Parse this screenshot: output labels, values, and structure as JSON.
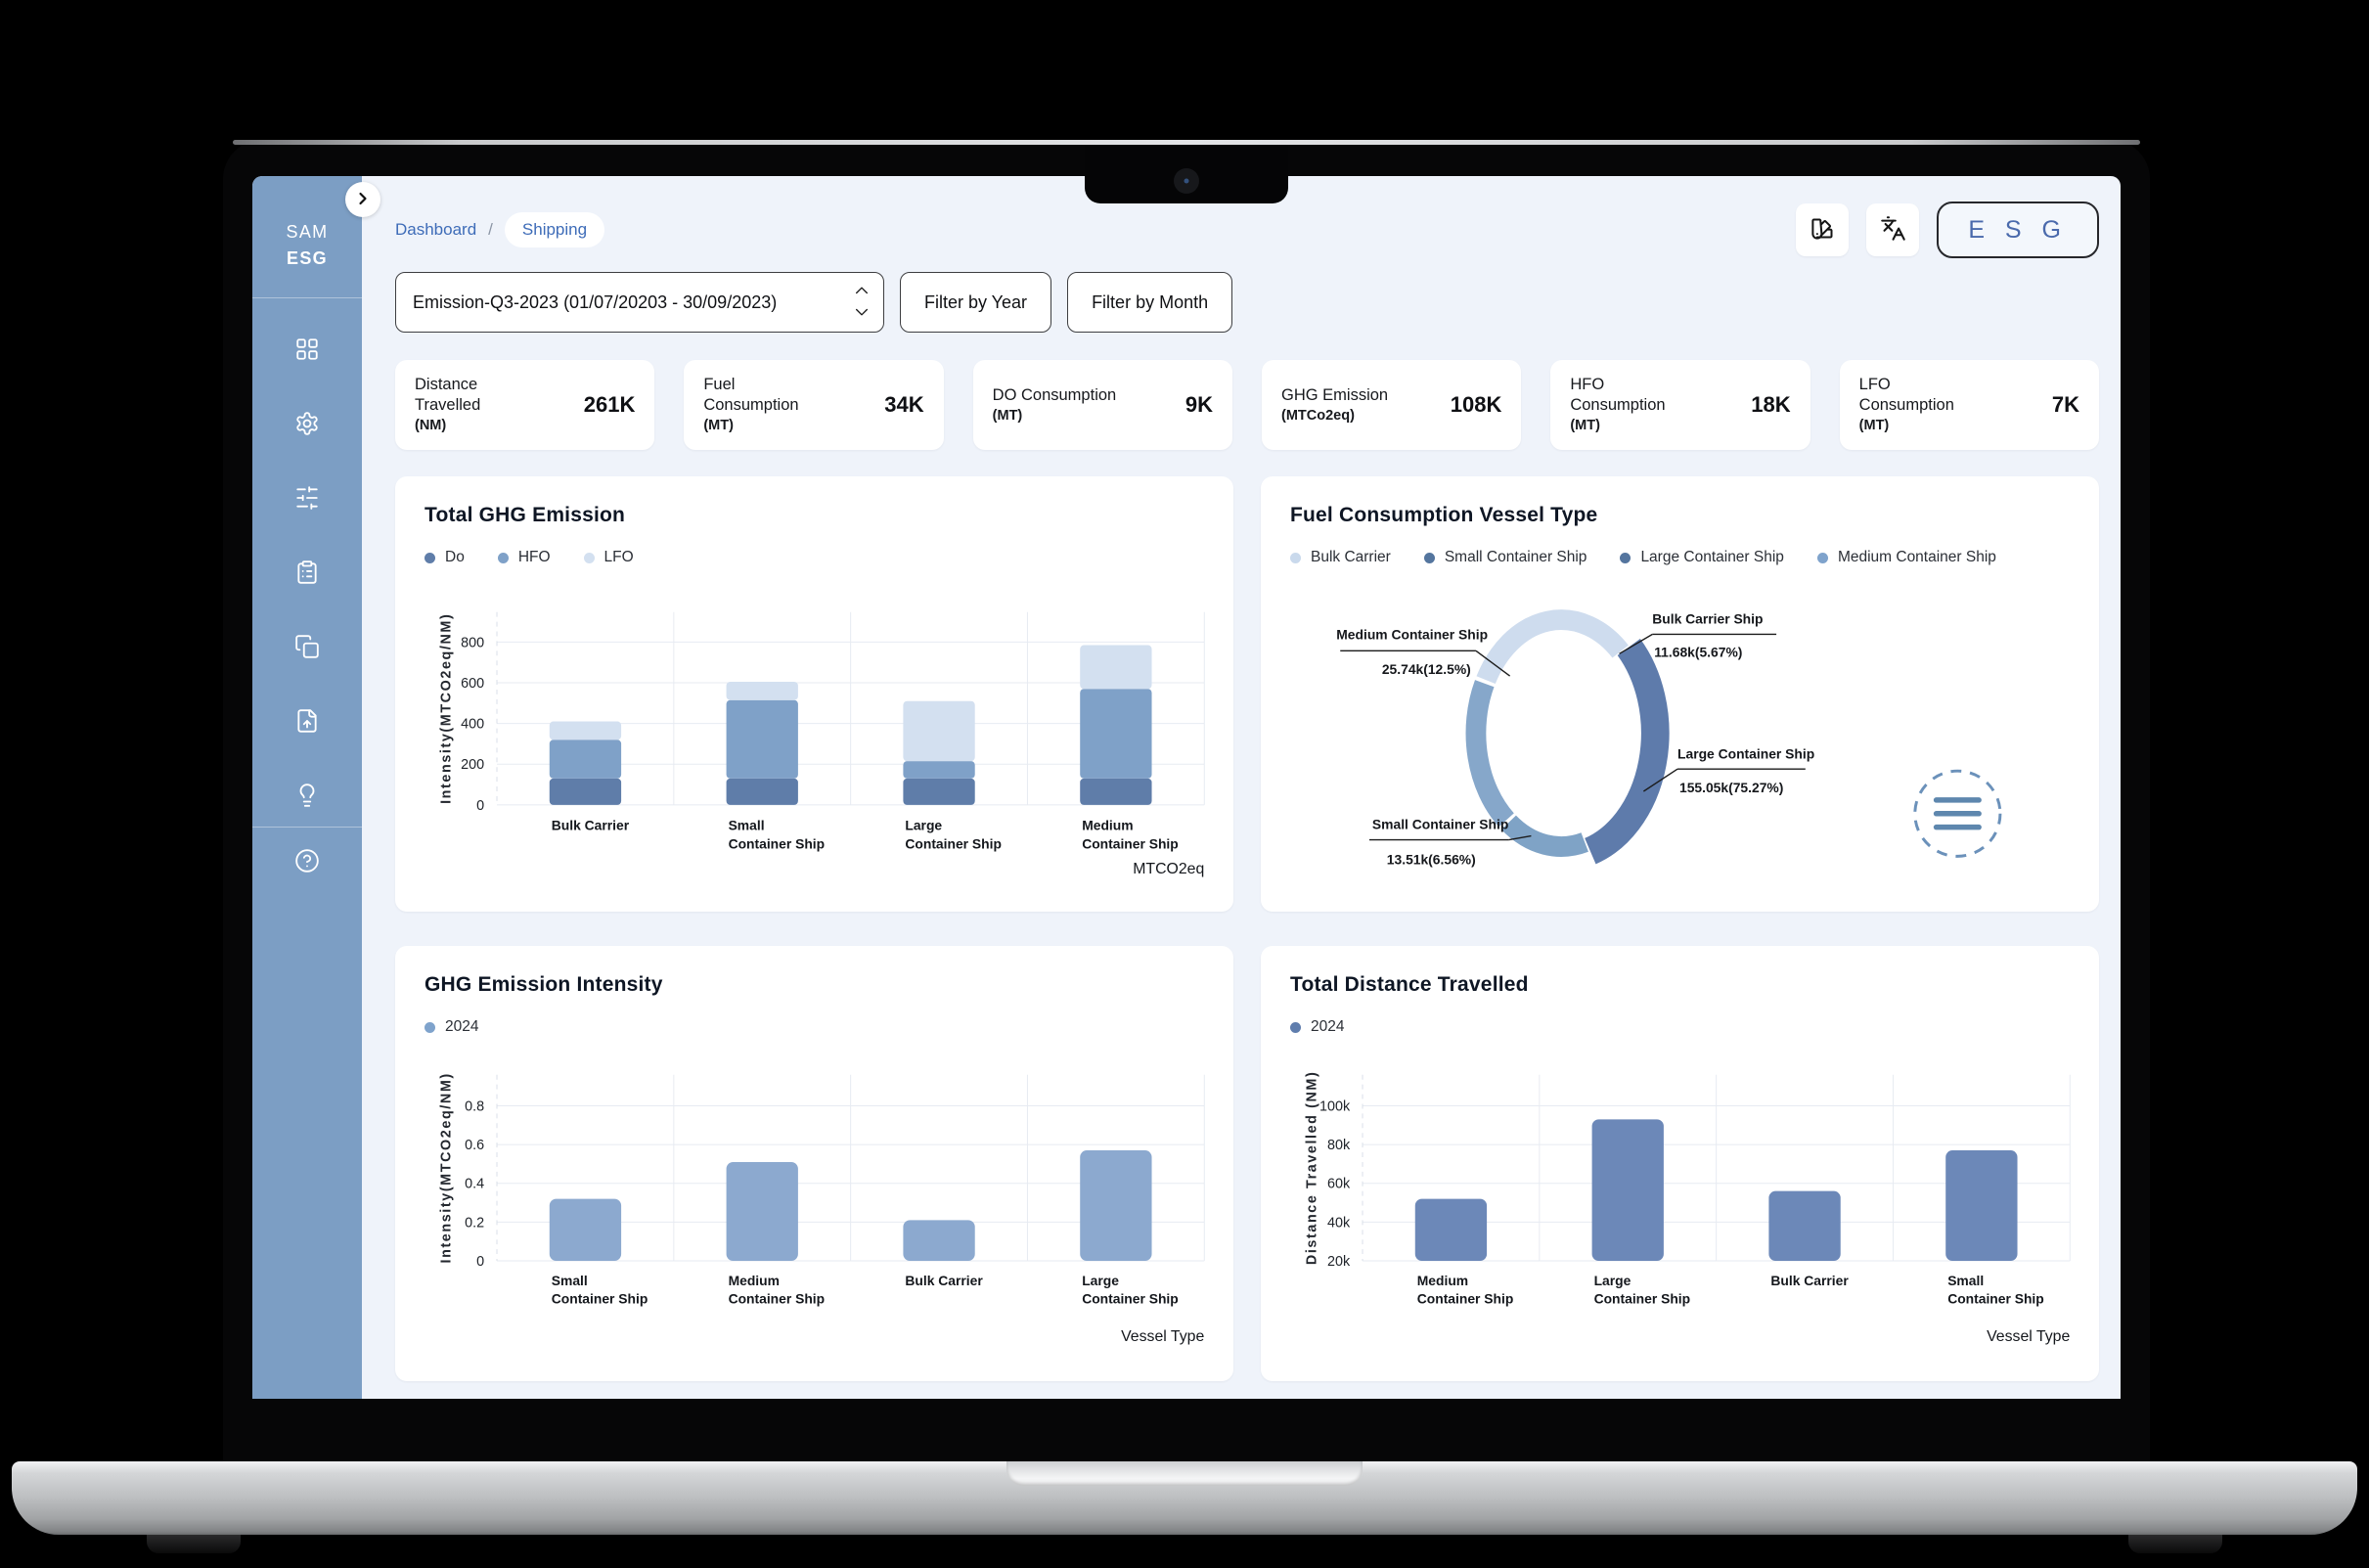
{
  "brand": {
    "line1": "SAM",
    "line2": "ESG"
  },
  "breadcrumb": {
    "root": "Dashboard",
    "separator": "/",
    "current": "Shipping"
  },
  "topbar": {
    "esg_label": "E S G"
  },
  "filters": {
    "period_selector": "Emission-Q3-2023 (01/07/20203 - 30/09/2023)",
    "filter_year": "Filter by Year",
    "filter_month": "Filter by Month"
  },
  "kpis": [
    {
      "label": "Distance Travelled",
      "unit": "(NM)",
      "value": "261K"
    },
    {
      "label": "Fuel Consumption",
      "unit": "(MT)",
      "value": "34K"
    },
    {
      "label": "DO Consumption",
      "unit": "(MT)",
      "value": "9K"
    },
    {
      "label": "GHG Emission",
      "unit": "(MTCo2eq)",
      "value": "108K"
    },
    {
      "label": "HFO Consumption",
      "unit": "(MT)",
      "value": "18K"
    },
    {
      "label": "LFO Consumption",
      "unit": "(MT)",
      "value": "7K"
    }
  ],
  "chart_data": [
    {
      "id": "total-ghg-emission",
      "type": "bar",
      "stacked": true,
      "title": "Total GHG Emission",
      "categories": [
        "Bulk Carrier",
        "Small Container Ship",
        "Large Container Ship",
        "Medium Container Ship"
      ],
      "series": [
        {
          "name": "Do",
          "color": "#5F7DA9",
          "values": [
            130,
            130,
            130,
            130
          ]
        },
        {
          "name": "HFO",
          "color": "#7FA1C8",
          "values": [
            190,
            385,
            85,
            440
          ]
        },
        {
          "name": "LFO",
          "color": "#D3E0F0",
          "values": [
            90,
            90,
            295,
            215
          ]
        }
      ],
      "ylabel": "Intensity(MTCO2eq/NM)",
      "xlabel": "MTCO2eq",
      "yticks": [
        0,
        200,
        400,
        600,
        800
      ],
      "ylim": [
        0,
        950
      ],
      "grid": true,
      "legend_position": "top-left"
    },
    {
      "id": "fuel-consumption-vessel-type",
      "type": "pie",
      "title": "Fuel Consumption Vessel Type",
      "legend": [
        {
          "label": "Bulk Carrier",
          "color": "#C9D9EC"
        },
        {
          "label": "Small Container Ship",
          "color": "#54759E"
        },
        {
          "label": "Large Container Ship",
          "color": "#54759E"
        },
        {
          "label": "Medium Container Ship",
          "color": "#7FA3CC"
        }
      ],
      "segments": [
        {
          "name": "Bulk Carrier Ship",
          "value": 11680,
          "value_label": "11.68k(5.67%)",
          "pct": 5.67,
          "color": "#CEDCEE",
          "angles": [
            -62,
            44
          ],
          "ring": "normal"
        },
        {
          "name": "Large Container Ship",
          "value": 155050,
          "value_label": "155.05k(75.27%)",
          "pct": 75.27,
          "color": "#5E7BAB",
          "angles": [
            46,
            162
          ],
          "ring": "thick"
        },
        {
          "name": "Small Container Ship",
          "value": 13510,
          "value_label": "13.51k(6.56%)",
          "pct": 6.56,
          "color": "#7FA3C6",
          "angles": [
            164,
            218
          ],
          "ring": "normal"
        },
        {
          "name": "Medium Container Ship",
          "value": 25740,
          "value_label": "25.74k(12.5%)",
          "pct": 12.5,
          "color": "#86A7CA",
          "angles": [
            220,
            296
          ],
          "ring": "normal"
        }
      ]
    },
    {
      "id": "ghg-emission-intensity",
      "type": "bar",
      "stacked": false,
      "title": "GHG Emission Intensity",
      "legend": [
        {
          "label": "2024",
          "color": "#7FA3CC"
        }
      ],
      "categories": [
        "Small Container Ship",
        "Medium Container Ship",
        "Bulk Carrier",
        "Large Container Ship"
      ],
      "values": [
        0.32,
        0.51,
        0.21,
        0.57
      ],
      "bar_color": "#8CA9CF",
      "ylabel": "Intensity(MTCO2eq/NM)",
      "xlabel": "Vessel Type",
      "yticks": [
        0,
        0.2,
        0.4,
        0.6,
        0.8
      ],
      "ylim": [
        0,
        0.95
      ],
      "grid": true
    },
    {
      "id": "total-distance-travelled",
      "type": "bar",
      "stacked": false,
      "title": "Total Distance Travelled",
      "legend": [
        {
          "label": "2024",
          "color": "#5F7DAD"
        }
      ],
      "categories": [
        "Medium Container Ship",
        "Large Container Ship",
        "Bulk Carrier",
        "Small Container Ship"
      ],
      "values": [
        52000,
        93000,
        56000,
        77000
      ],
      "bar_color": "#6C88B8",
      "ylabel": "Distance Travelled (NM)",
      "xlabel": "Vessel Type",
      "yticks": [
        20000,
        40000,
        60000,
        80000,
        100000
      ],
      "ytick_labels": [
        "20k",
        "40k",
        "60k",
        "80k",
        "100k"
      ],
      "ylim": [
        20000,
        110000
      ],
      "grid": true
    }
  ]
}
